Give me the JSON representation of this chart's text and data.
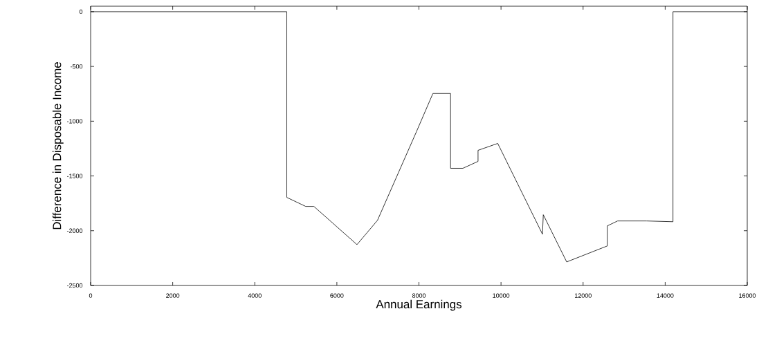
{
  "chart_data": {
    "type": "line",
    "xlabel": "Annual Earnings",
    "ylabel": "Difference in Disposable Income",
    "x": [
      0,
      4780,
      4780,
      5240,
      5440,
      6490,
      6990,
      7940,
      8340,
      8770,
      8770,
      9070,
      9440,
      9440,
      9920,
      11010,
      11030,
      11600,
      12590,
      12590,
      12840,
      13550,
      14190,
      14190,
      16000
    ],
    "values": [
      0,
      0,
      -1696,
      -1778,
      -1778,
      -2127,
      -1905,
      -1095,
      -747,
      -747,
      -1430,
      -1430,
      -1367,
      -1266,
      -1203,
      -2032,
      -1854,
      -2285,
      -2139,
      -1956,
      -1911,
      -1911,
      -1918,
      0,
      0
    ],
    "color": "#000000",
    "xlim": [
      0,
      16000
    ],
    "ylim": [
      -2500,
      50
    ],
    "xticks": [
      0,
      2000,
      4000,
      6000,
      8000,
      10000,
      12000,
      14000,
      16000
    ],
    "yticks": [
      -2500,
      -2000,
      -1500,
      -1000,
      -500,
      0
    ],
    "marker": "none",
    "line_style": "solid"
  }
}
